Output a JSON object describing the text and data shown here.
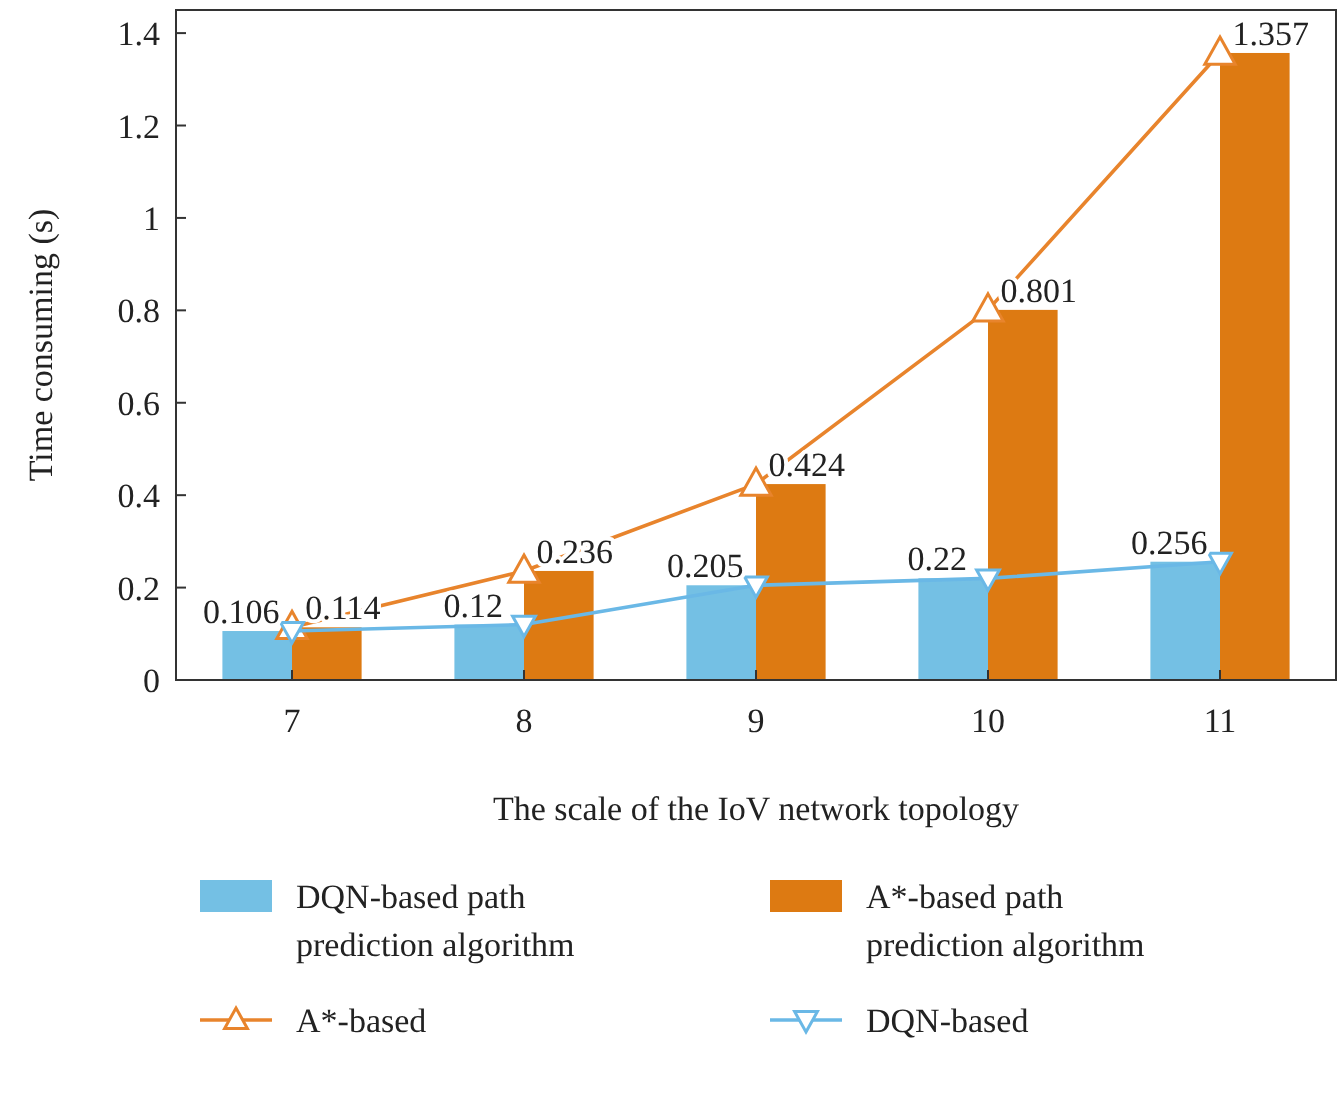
{
  "chart_data": {
    "type": "bar",
    "xlabel": "The scale of the IoV network topology",
    "ylabel": "Time consuming (s)",
    "categories": [
      "7",
      "8",
      "9",
      "10",
      "11"
    ],
    "series": [
      {
        "name": "DQN-based path prediction algorithm",
        "color": "#74c0e4",
        "values": [
          0.106,
          0.12,
          0.205,
          0.22,
          0.256
        ],
        "value_labels": [
          "0.106",
          "0.12",
          "0.205",
          "0.22",
          "0.256"
        ]
      },
      {
        "name": "A*-based path prediction algorithm",
        "color": "#dd7a12",
        "values": [
          0.114,
          0.236,
          0.424,
          0.801,
          1.357
        ],
        "value_labels": [
          "0.114",
          "0.236",
          "0.424",
          "0.801",
          "1.357"
        ]
      },
      {
        "name": "A*-based",
        "type": "line",
        "color": "#e8842c",
        "marker": "triangle",
        "values": [
          0.114,
          0.236,
          0.424,
          0.801,
          1.357
        ]
      },
      {
        "name": "DQN-based",
        "type": "line",
        "color": "#6ab8e6",
        "marker": "triangle-down",
        "values": [
          0.106,
          0.12,
          0.205,
          0.22,
          0.256
        ]
      }
    ],
    "ylim": [
      0,
      1.45
    ],
    "yticks": [
      0,
      0.2,
      0.4,
      0.6,
      0.8,
      1,
      1.2,
      1.4
    ],
    "grid": false,
    "legend": "bottom"
  }
}
